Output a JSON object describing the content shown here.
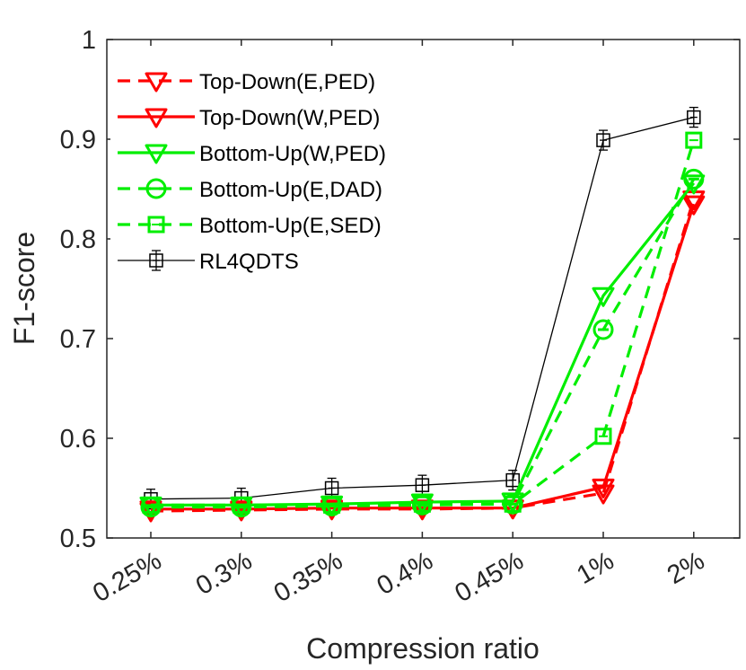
{
  "chart_data": {
    "type": "line",
    "xlabel": "Compression ratio",
    "ylabel": "F1-score",
    "categories": [
      "0.25%",
      "0.3%",
      "0.35%",
      "0.4%",
      "0.45%",
      "1%",
      "2%"
    ],
    "ylim": [
      0.5,
      1
    ],
    "yticks": [
      "0.5",
      "0.6",
      "0.7",
      "0.8",
      "0.9",
      "1"
    ],
    "grid": false,
    "legend_position": "top-left",
    "series": [
      {
        "name": "Top-Down(E,PED)",
        "values": [
          0.527,
          0.528,
          0.529,
          0.529,
          0.53,
          0.545,
          0.84
        ],
        "color": "#ff0000",
        "dash": "dashed",
        "marker": "triangle-down"
      },
      {
        "name": "Top-Down(W,PED)",
        "values": [
          0.529,
          0.529,
          0.53,
          0.53,
          0.53,
          0.551,
          0.835
        ],
        "color": "#ff0000",
        "dash": "solid",
        "marker": "triangle-down"
      },
      {
        "name": "Bottom-Up(W,PED)",
        "values": [
          0.533,
          0.533,
          0.534,
          0.536,
          0.537,
          0.743,
          0.856
        ],
        "color": "#00ee00",
        "dash": "solid",
        "marker": "triangle-down"
      },
      {
        "name": "Bottom-Up(E,DAD)",
        "values": [
          0.531,
          0.531,
          0.532,
          0.533,
          0.534,
          0.709,
          0.86
        ],
        "color": "#00ee00",
        "dash": "dashed",
        "marker": "circle-dash"
      },
      {
        "name": "Bottom-Up(E,SED)",
        "values": [
          0.533,
          0.533,
          0.533,
          0.534,
          0.534,
          0.602,
          0.899
        ],
        "color": "#00ee00",
        "dash": "dashed",
        "marker": "square-dash"
      },
      {
        "name": "RL4QDTS",
        "values": [
          0.539,
          0.54,
          0.55,
          0.553,
          0.558,
          0.899,
          0.922
        ],
        "color": "#000000",
        "dash": "solid",
        "marker": "square-errorbar"
      }
    ]
  }
}
